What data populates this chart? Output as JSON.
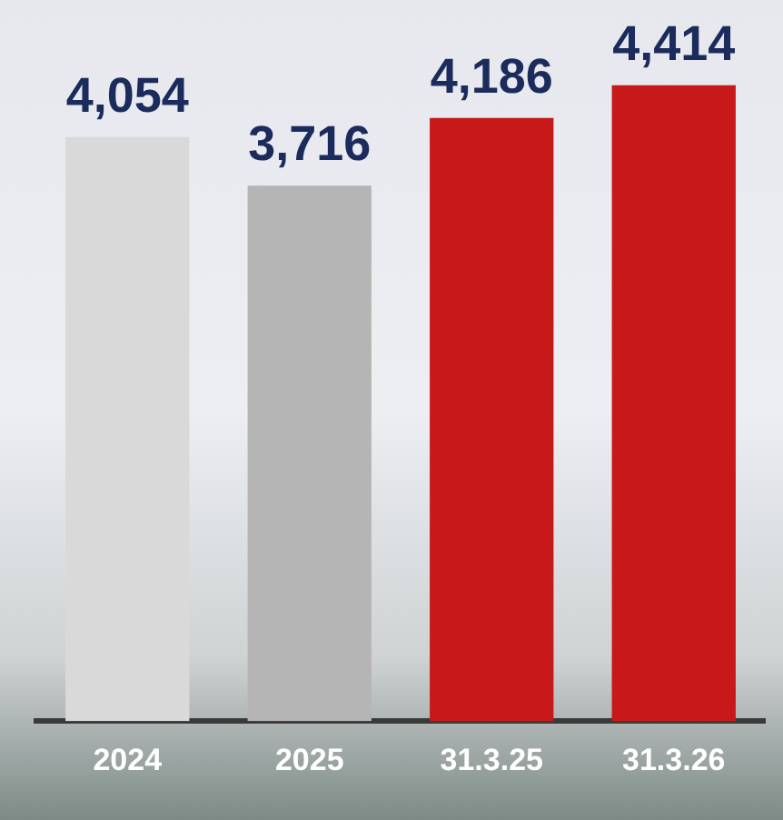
{
  "chart_data": {
    "type": "bar",
    "categories": [
      "2024",
      "2025",
      "31.3.25",
      "31.3.26"
    ],
    "values": [
      4054,
      3716,
      4186,
      4414
    ],
    "colors": [
      "#d9d9d9",
      "#b5b5b5",
      "#c8191a",
      "#c8191a"
    ],
    "value_labels": [
      "4,054",
      "3,716",
      "4,186",
      "4,414"
    ],
    "grid": false,
    "legend": false,
    "tick_labels": "x"
  }
}
